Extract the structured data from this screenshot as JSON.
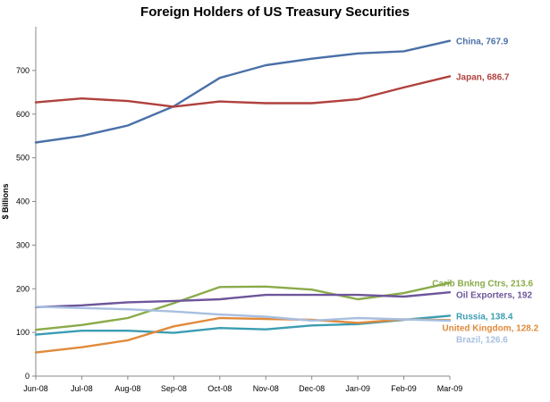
{
  "chart_data": {
    "type": "line",
    "title": "Foreign Holders of US Treasury Securities",
    "xlabel": "",
    "ylabel": "$ Billions",
    "ylim": [
      0,
      800
    ],
    "yticks": [
      0,
      100,
      200,
      300,
      400,
      500,
      600,
      700
    ],
    "grid": false,
    "legend": "direct labels at right end of each line",
    "categories": [
      "Jun-08",
      "Jul-08",
      "Aug-08",
      "Sep-08",
      "Oct-08",
      "Nov-08",
      "Dec-08",
      "Jan-09",
      "Feb-09",
      "Mar-09"
    ],
    "series": [
      {
        "name": "China",
        "label": "China, 767.9",
        "color": "#4a70a8",
        "values": [
          535,
          550,
          574,
          618,
          683,
          712,
          727,
          739,
          744,
          767.9
        ]
      },
      {
        "name": "Japan",
        "label": "Japan, 686.7",
        "color": "#b0413e",
        "values": [
          627,
          636,
          630,
          617,
          629,
          625,
          625,
          634,
          661,
          686.7
        ]
      },
      {
        "name": "Carib Bnkng Ctrs",
        "label": "Carib Bnkng Ctrs, 213.6",
        "color": "#8aab4a",
        "values": [
          106,
          117,
          133,
          167,
          204,
          205,
          198,
          176,
          190,
          213.6
        ]
      },
      {
        "name": "Oil Exporters",
        "label": "Oil Exporters, 192",
        "color": "#6e559a",
        "values": [
          158,
          162,
          169,
          172,
          176,
          186,
          186,
          186,
          182,
          192
        ]
      },
      {
        "name": "Russia",
        "label": "Russia, 138.4",
        "color": "#3b9db3",
        "values": [
          95,
          104,
          104,
          99,
          110,
          107,
          116,
          119,
          129,
          138.4
        ]
      },
      {
        "name": "United Kingdom",
        "label": "United Kingdom, 128.2",
        "color": "#e08a3c",
        "values": [
          54,
          66,
          82,
          114,
          133,
          131,
          129,
          122,
          130,
          128.2
        ]
      },
      {
        "name": "Brazil",
        "label": "Brazil, 126.6",
        "color": "#a8bfe0",
        "values": [
          159,
          156,
          153,
          148,
          141,
          136,
          127,
          133,
          130,
          126.6
        ]
      }
    ]
  }
}
